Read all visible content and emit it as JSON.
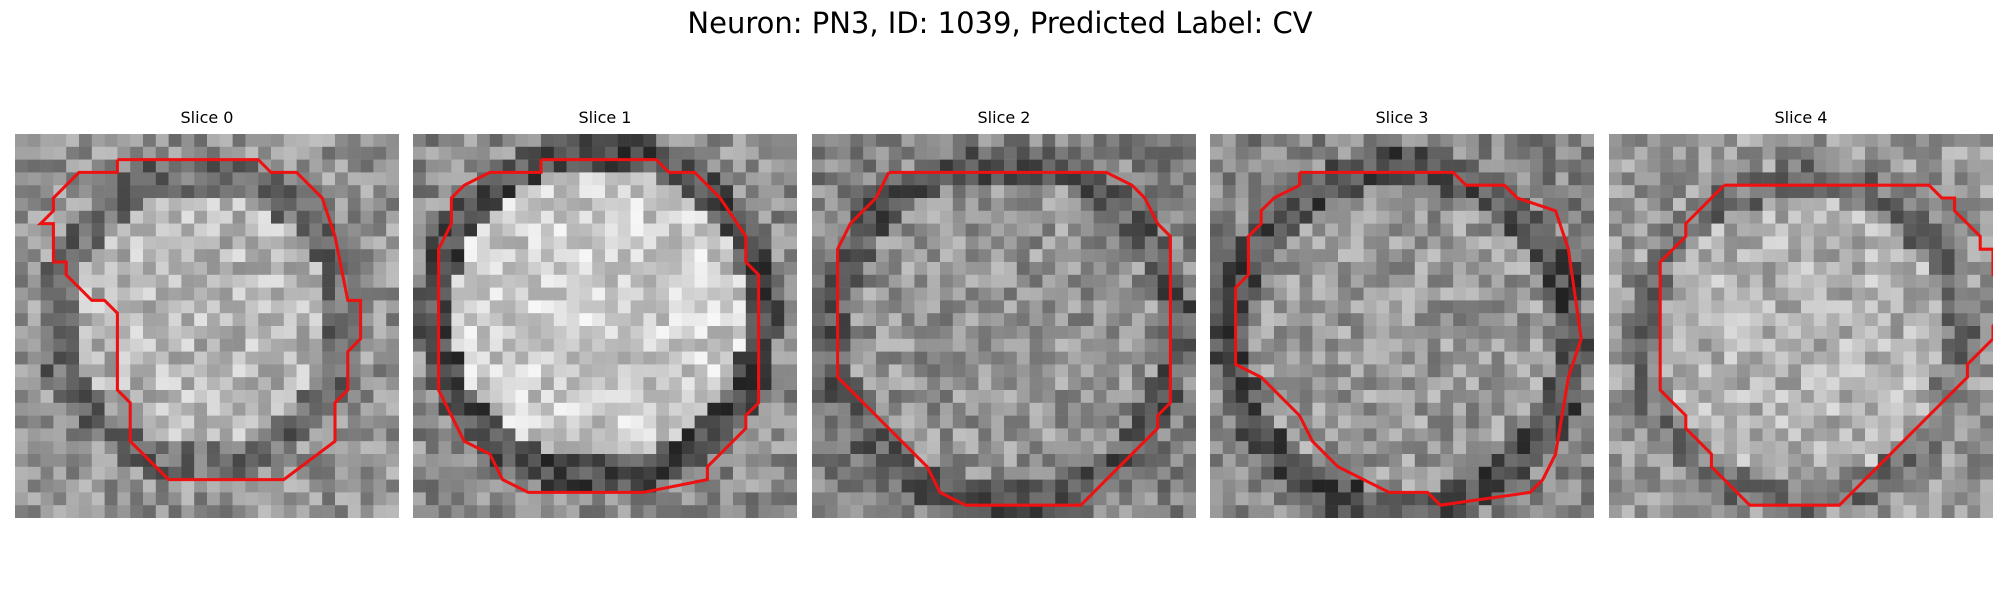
{
  "figure": {
    "title": "Neuron: PN3, ID: 1039, Predicted Label: CV",
    "contour_color": "#ee1111"
  },
  "panels": [
    {
      "title": "Slice 0"
    },
    {
      "title": "Slice 1"
    },
    {
      "title": "Slice 2"
    },
    {
      "title": "Slice 3"
    },
    {
      "title": "Slice 4"
    }
  ]
}
